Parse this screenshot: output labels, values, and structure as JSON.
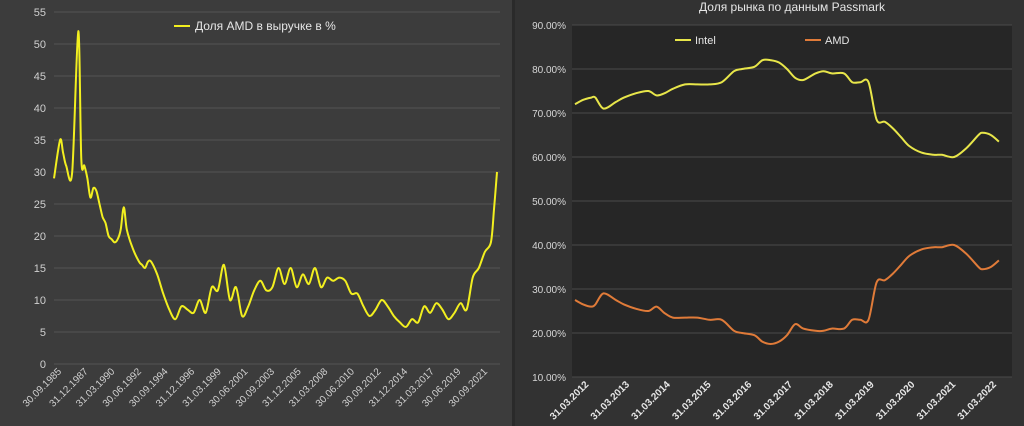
{
  "chart_data": [
    {
      "type": "line",
      "title": "",
      "legend": {
        "label": "Доля AMD в выручке в %",
        "placement": "top-center"
      },
      "xlabel": "",
      "ylabel": "",
      "ylim": [
        0,
        55
      ],
      "yticks": [
        "0",
        "5",
        "10",
        "15",
        "20",
        "25",
        "30",
        "35",
        "40",
        "45",
        "50",
        "55"
      ],
      "xticks": [
        "30.09.1985",
        "31.12.1987",
        "31.03.1990",
        "30.06.1992",
        "30.09.1994",
        "31.12.1996",
        "31.03.1999",
        "30.06.2001",
        "30.09.2003",
        "31.12.2005",
        "31.03.2008",
        "30.06.2010",
        "30.09.2012",
        "31.12.2014",
        "31.03.2017",
        "30.06.2019",
        "30.09.2021"
      ],
      "x_range": [
        0,
        147
      ],
      "series": [
        {
          "name": "Доля AMD в выручке в %",
          "color": "#f2ef1f",
          "x": [
            0,
            2,
            3,
            4,
            6,
            8,
            9,
            10,
            11,
            12,
            13,
            14,
            15,
            16,
            17,
            18,
            19,
            20,
            21,
            22,
            23,
            24,
            26,
            28,
            29,
            30,
            31,
            32,
            34,
            36,
            38,
            40,
            42,
            44,
            46,
            48,
            50,
            52,
            54,
            56,
            58,
            60,
            62,
            64,
            66,
            68,
            70,
            72,
            74,
            76,
            78,
            80,
            82,
            84,
            86,
            88,
            90,
            92,
            94,
            96,
            98,
            100,
            102,
            104,
            106,
            108,
            110,
            112,
            114,
            116,
            118,
            120,
            122,
            124,
            126,
            128,
            130,
            132,
            134,
            136,
            138,
            140,
            142,
            144,
            145,
            146
          ],
          "values": [
            29,
            35,
            33,
            31,
            30,
            52,
            32,
            31,
            29,
            26,
            27.5,
            27,
            25,
            23,
            22,
            20,
            19.5,
            19,
            19.5,
            21,
            24.5,
            21,
            18,
            16,
            15.5,
            15,
            16,
            16,
            14,
            11,
            8.5,
            7,
            9,
            8.5,
            8,
            10,
            8,
            12,
            11.5,
            15.5,
            10,
            12,
            7.5,
            9,
            11.5,
            13,
            11.5,
            12,
            15,
            12.5,
            15,
            12,
            14,
            12.5,
            15,
            12,
            13.5,
            13,
            13.5,
            13,
            11,
            11,
            9,
            7.5,
            8.5,
            10,
            9,
            7.5,
            6.5,
            5.8,
            7,
            6.5,
            9,
            8,
            9.5,
            8.5,
            7,
            8,
            9.5,
            8.5,
            13.5,
            15,
            17.5,
            19,
            24,
            30
          ]
        }
      ]
    },
    {
      "type": "line",
      "title": "Доля рынка по данным Passmark",
      "xlabel": "",
      "ylabel": "",
      "ylim": [
        10,
        90
      ],
      "yticks": [
        "10.00%",
        "20.00%",
        "30.00%",
        "40.00%",
        "50.00%",
        "60.00%",
        "70.00%",
        "80.00%",
        "90.00%"
      ],
      "xticks": [
        "31.03.2012",
        "31.03.2013",
        "31.03.2014",
        "31.03.2015",
        "31.03.2016",
        "31.03.2017",
        "31.03.2018",
        "31.03.2019",
        "31.03.2020",
        "31.03.2021",
        "31.03.2022"
      ],
      "x_range": [
        2012.0,
        2022.5
      ],
      "legend": {
        "placement": "top"
      },
      "series": [
        {
          "name": "Intel",
          "color": "#e8e64a",
          "x": [
            2012.0,
            2012.2,
            2012.4,
            2012.5,
            2012.7,
            2013.0,
            2013.2,
            2013.5,
            2013.8,
            2014.0,
            2014.2,
            2014.4,
            2014.7,
            2015.0,
            2015.3,
            2015.6,
            2015.9,
            2016.1,
            2016.4,
            2016.6,
            2016.8,
            2017.0,
            2017.2,
            2017.4,
            2017.6,
            2017.9,
            2018.1,
            2018.3,
            2018.6,
            2018.8,
            2019.0,
            2019.2,
            2019.4,
            2019.6,
            2019.8,
            2020.0,
            2020.2,
            2020.5,
            2020.8,
            2021.0,
            2021.3,
            2021.6,
            2021.9,
            2022.0,
            2022.2,
            2022.4
          ],
          "values": [
            72,
            73,
            73.5,
            73.5,
            71,
            72.5,
            73.5,
            74.5,
            75,
            74,
            74.5,
            75.5,
            76.5,
            76.5,
            76.5,
            77,
            79.5,
            80,
            80.5,
            82,
            82,
            81.5,
            80,
            78,
            77.5,
            79,
            79.5,
            79,
            79,
            77,
            77,
            77,
            68.5,
            68,
            66.5,
            64.5,
            62.5,
            61,
            60.5,
            60.5,
            60,
            62,
            65,
            65.5,
            65,
            63.5
          ]
        },
        {
          "name": "AMD",
          "color": "#e07b39",
          "x": [
            2012.0,
            2012.2,
            2012.4,
            2012.5,
            2012.7,
            2013.0,
            2013.2,
            2013.5,
            2013.8,
            2014.0,
            2014.2,
            2014.4,
            2014.7,
            2015.0,
            2015.3,
            2015.6,
            2015.9,
            2016.1,
            2016.4,
            2016.6,
            2016.8,
            2017.0,
            2017.2,
            2017.4,
            2017.6,
            2017.9,
            2018.1,
            2018.3,
            2018.6,
            2018.8,
            2019.0,
            2019.2,
            2019.4,
            2019.6,
            2019.8,
            2020.0,
            2020.2,
            2020.5,
            2020.8,
            2021.0,
            2021.3,
            2021.6,
            2021.9,
            2022.0,
            2022.2,
            2022.4
          ],
          "values": [
            27.5,
            26.5,
            26,
            26.5,
            29,
            27.5,
            26.5,
            25.5,
            25,
            26,
            24.5,
            23.5,
            23.5,
            23.5,
            23,
            23,
            20.5,
            20,
            19.5,
            18,
            17.5,
            18,
            19.5,
            22,
            21,
            20.5,
            20.5,
            21,
            21,
            23,
            23,
            23,
            31.5,
            32,
            33.5,
            35.5,
            37.5,
            39,
            39.5,
            39.5,
            40,
            38,
            35,
            34.5,
            35,
            36.5
          ]
        }
      ]
    }
  ]
}
